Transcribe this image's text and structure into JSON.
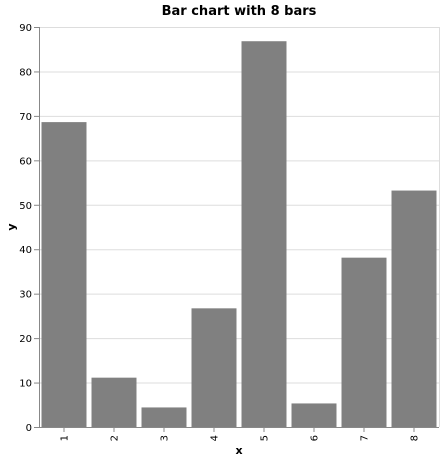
{
  "chart_data": {
    "type": "bar",
    "title": "Bar chart with 8 bars",
    "xlabel": "x",
    "ylabel": "y",
    "categories": [
      "1",
      "2",
      "3",
      "4",
      "5",
      "6",
      "7",
      "8"
    ],
    "values": [
      68.6,
      11.1,
      4.4,
      26.7,
      86.8,
      5.3,
      38.1,
      53.2
    ],
    "ylim": [
      0,
      90
    ],
    "yticks": [
      0,
      10,
      20,
      30,
      40,
      50,
      60,
      70,
      80,
      90
    ],
    "grid": true,
    "legend": "none",
    "bar_color": "#808080"
  }
}
